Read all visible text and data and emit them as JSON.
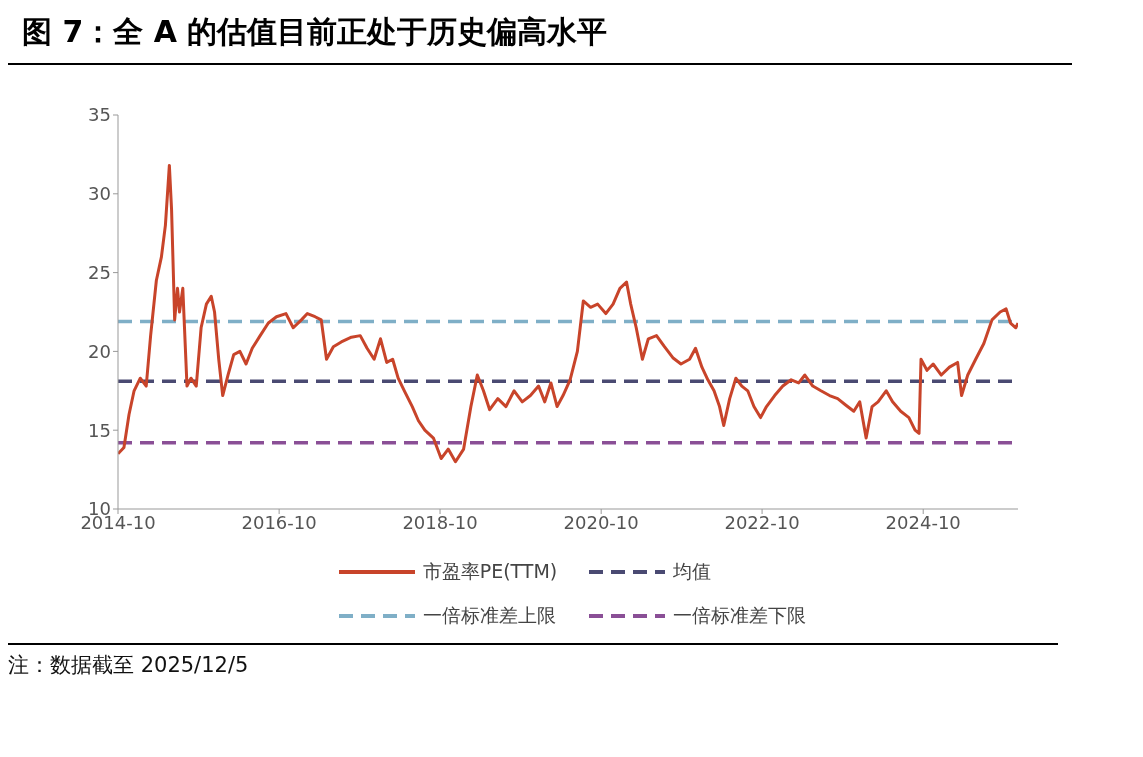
{
  "chart_data": {
    "type": "line",
    "title": "图 7：全 A 的估值目前正处于历史偏高水平",
    "annotations": [
      "注：数据截至 2025/12/5"
    ],
    "series": [
      {
        "name": "市盈率PE(TTM)",
        "color": "#c8442a",
        "x": [
          "2014-10-01",
          "2014-10-28",
          "2014-11-20",
          "2014-12-13",
          "2015-01-10",
          "2015-02-06",
          "2015-02-26",
          "2015-03-24",
          "2015-04-16",
          "2015-05-04",
          "2015-05-22",
          "2015-06-01",
          "2015-06-15",
          "2015-06-28",
          "2015-07-07",
          "2015-07-22",
          "2015-08-10",
          "2015-08-28",
          "2015-09-21",
          "2015-10-13",
          "2015-11-06",
          "2015-11-28",
          "2015-12-13",
          "2016-01-01",
          "2016-01-19",
          "2016-02-12",
          "2016-03-09",
          "2016-04-06",
          "2016-05-04",
          "2016-06-01",
          "2016-07-07",
          "2016-08-13",
          "2016-09-19",
          "2016-11-01",
          "2016-12-04",
          "2017-01-10",
          "2017-02-06",
          "2017-03-13",
          "2017-04-10",
          "2017-05-04",
          "2017-06-04",
          "2017-07-10",
          "2017-08-25",
          "2017-10-04",
          "2017-11-04",
          "2017-12-06",
          "2018-01-04",
          "2018-02-01",
          "2018-02-28",
          "2018-03-25",
          "2018-04-22",
          "2018-05-28",
          "2018-06-25",
          "2018-07-24",
          "2018-09-01",
          "2018-10-06",
          "2018-11-07",
          "2018-12-10",
          "2019-01-16",
          "2019-02-18",
          "2019-03-19",
          "2019-04-16",
          "2019-05-14",
          "2019-06-20",
          "2019-07-27",
          "2019-09-02",
          "2019-10-09",
          "2019-11-15",
          "2019-12-22",
          "2020-01-19",
          "2020-02-16",
          "2020-03-15",
          "2020-04-11",
          "2020-05-13",
          "2020-06-15",
          "2020-07-12",
          "2020-08-14",
          "2020-09-15",
          "2020-10-22",
          "2020-11-24",
          "2020-12-25",
          "2021-01-24",
          "2021-02-12",
          "2021-03-09",
          "2021-04-06",
          "2021-05-03",
          "2021-06-09",
          "2021-07-15",
          "2021-08-22",
          "2021-09-28",
          "2021-11-06",
          "2021-12-03",
          "2022-01-01",
          "2022-01-28",
          "2022-02-25",
          "2022-03-22",
          "2022-04-10",
          "2022-05-07",
          "2022-06-04",
          "2022-07-01",
          "2022-07-28",
          "2022-08-25",
          "2022-09-24",
          "2022-10-21",
          "2022-11-27",
          "2023-01-03",
          "2023-02-10",
          "2023-03-16",
          "2023-04-13",
          "2023-05-19",
          "2023-06-25",
          "2023-08-03",
          "2023-09-09",
          "2023-10-15",
          "2023-11-21",
          "2023-12-18",
          "2024-01-16",
          "2024-02-12",
          "2024-03-10",
          "2024-04-16",
          "2024-05-15",
          "2024-06-21",
          "2024-07-28",
          "2024-08-25",
          "2024-09-12",
          "2024-09-21",
          "2024-10-18",
          "2024-11-15",
          "2024-12-22",
          "2025-01-28",
          "2025-03-06",
          "2025-03-24",
          "2025-04-21",
          "2025-05-27",
          "2025-07-03",
          "2025-08-09",
          "2025-09-15",
          "2025-10-12",
          "2025-11-01",
          "2025-11-25",
          "2025-12-05"
        ],
        "values": [
          13.5,
          13.9,
          16.0,
          17.5,
          18.3,
          17.8,
          21.0,
          24.5,
          26.0,
          28.0,
          31.8,
          29.0,
          22.0,
          24.0,
          22.5,
          24.0,
          17.8,
          18.3,
          17.8,
          21.5,
          23.0,
          23.5,
          22.5,
          19.5,
          17.2,
          18.5,
          19.8,
          20.0,
          19.2,
          20.2,
          21.0,
          21.8,
          22.2,
          22.4,
          21.5,
          22.0,
          22.4,
          22.2,
          22.0,
          19.5,
          20.3,
          20.6,
          20.9,
          21.0,
          20.2,
          19.5,
          20.8,
          19.3,
          19.5,
          18.3,
          17.5,
          16.5,
          15.6,
          15.0,
          14.5,
          13.2,
          13.8,
          13.0,
          13.8,
          16.5,
          18.5,
          17.5,
          16.3,
          17.0,
          16.5,
          17.5,
          16.8,
          17.2,
          17.8,
          16.8,
          18.0,
          16.5,
          17.2,
          18.2,
          20.0,
          23.2,
          22.8,
          23.0,
          22.4,
          23.0,
          24.0,
          24.4,
          23.0,
          21.5,
          19.5,
          20.8,
          21.0,
          20.3,
          19.6,
          19.2,
          19.5,
          20.2,
          19.0,
          18.2,
          17.5,
          16.5,
          15.3,
          17.0,
          18.3,
          17.8,
          17.5,
          16.5,
          15.8,
          16.5,
          17.2,
          17.8,
          18.2,
          18.0,
          18.5,
          17.8,
          17.5,
          17.2,
          17.0,
          16.6,
          16.2,
          16.8,
          14.5,
          16.5,
          16.8,
          17.5,
          16.8,
          16.2,
          15.8,
          15.0,
          14.8,
          19.5,
          18.8,
          19.2,
          18.5,
          19.0,
          19.3,
          17.2,
          18.5,
          19.5,
          20.5,
          22.0,
          22.5,
          22.7,
          21.8,
          21.5,
          21.8
        ]
      }
    ],
    "ref_lines": [
      {
        "axis": "y",
        "value": 18.1,
        "label": "均值",
        "color": "#4a4a72",
        "line_style": "dashed"
      },
      {
        "axis": "y",
        "value": 21.9,
        "label": "一倍标准差上限",
        "color": "#7fafc7",
        "line_style": "dashed"
      },
      {
        "axis": "y",
        "value": 14.2,
        "label": "一倍标准差下限",
        "color": "#8a4f96",
        "line_style": "dashed"
      }
    ],
    "xlim": [
      "2014-10",
      "2025-12-05"
    ],
    "xticks": [
      "2014-10",
      "2016-10",
      "2018-10",
      "2020-10",
      "2022-10",
      "2024-10"
    ],
    "ylim": [
      10,
      35
    ],
    "yticks": [
      10,
      15,
      20,
      25,
      30,
      35
    ],
    "grid": false,
    "legend": "bottom",
    "line_style": "solid",
    "marker": "none"
  }
}
